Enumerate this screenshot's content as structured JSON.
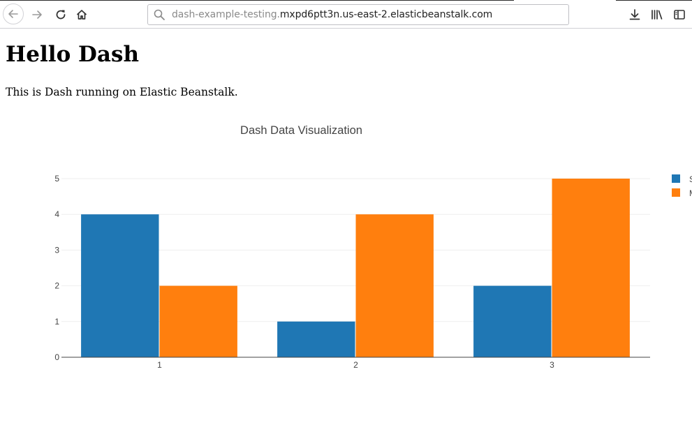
{
  "browser": {
    "url_subdomain": "dash-example-testing.",
    "url_domain": "mxpd6ptt3n.us-east-2.elasticbeanstalk.com",
    "icons": {
      "back": "back-arrow-icon",
      "forward": "forward-arrow-icon",
      "reload": "reload-icon",
      "home": "home-icon",
      "search": "search-icon",
      "download": "download-icon",
      "library": "library-icon",
      "sidebar": "sidebar-icon"
    }
  },
  "page": {
    "heading": "Hello Dash",
    "description": "This is Dash running on Elastic Beanstalk."
  },
  "chart_data": {
    "type": "bar",
    "title": "Dash Data Visualization",
    "categories": [
      "1",
      "2",
      "3"
    ],
    "series": [
      {
        "values": [
          4,
          1,
          2
        ],
        "color": "#1f77b4"
      },
      {
        "values": [
          2,
          4,
          5
        ],
        "color": "#ff7f0e"
      }
    ],
    "legend_entries": [
      "S",
      "M"
    ],
    "legend_position": "top-right",
    "ylim": [
      0,
      5
    ],
    "yticks": [
      0,
      1,
      2,
      3,
      4,
      5
    ],
    "grid": true,
    "xlabel": "",
    "ylabel": ""
  }
}
